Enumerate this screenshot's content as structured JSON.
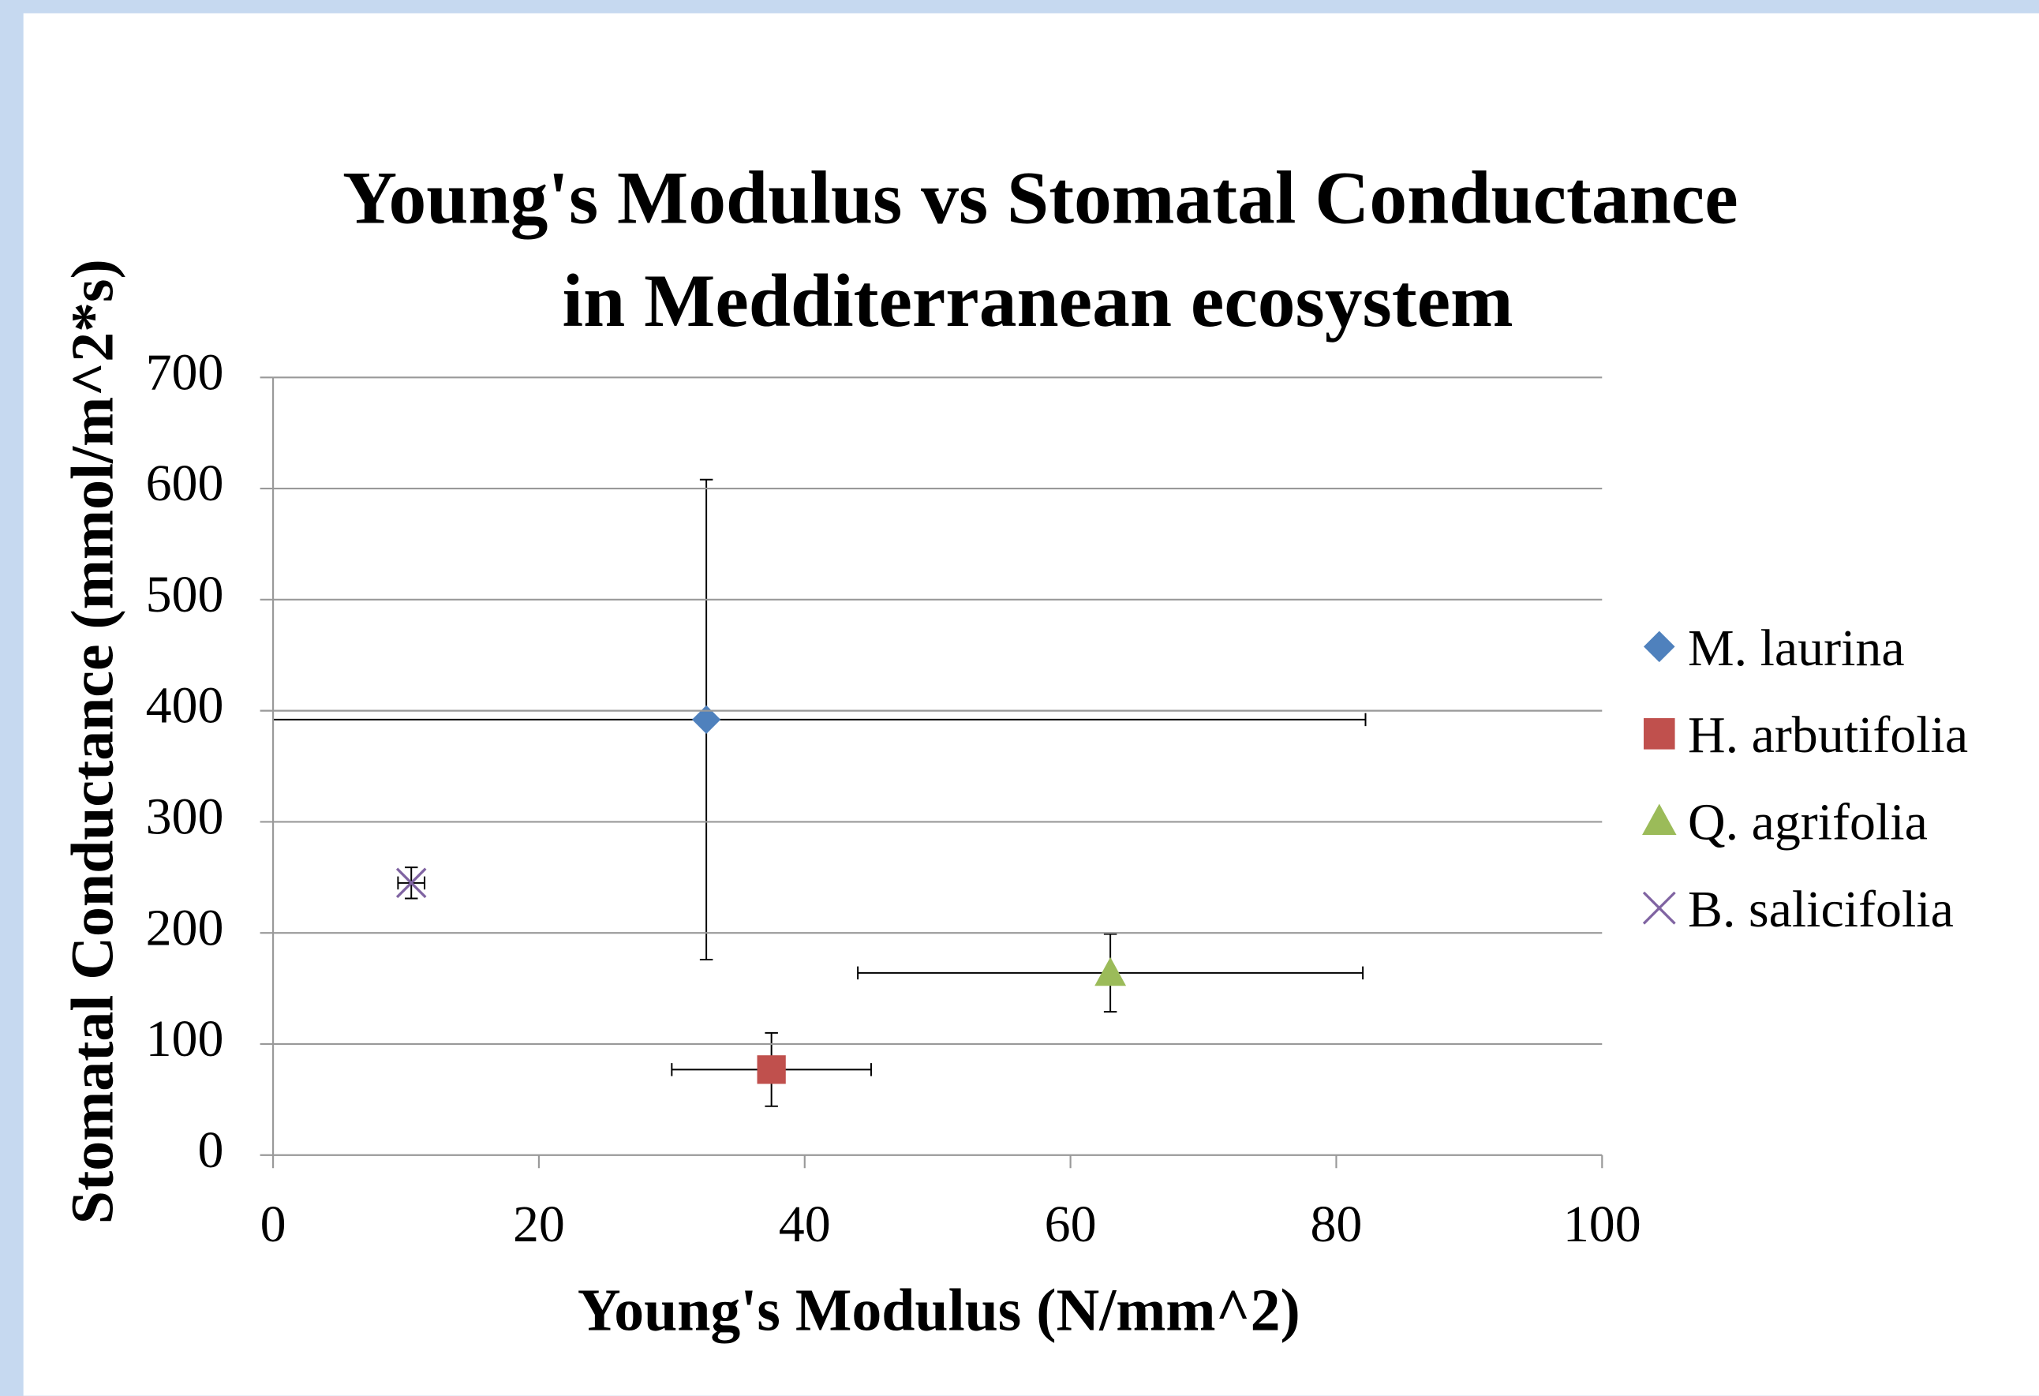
{
  "chart_data": {
    "type": "scatter",
    "title": [
      "Young's Modulus vs Stomatal Conductance",
      "in Medditerranean ecosystem"
    ],
    "xlabel": "Young's Modulus (N/mm^2)",
    "ylabel": "Stomatal Conductance (mmol/m^2*s)",
    "xlim": [
      0,
      100
    ],
    "xticks": [
      0,
      20,
      40,
      60,
      80,
      100
    ],
    "ylim": [
      0,
      700
    ],
    "yticks": [
      0,
      100,
      200,
      300,
      400,
      500,
      600,
      700
    ],
    "grid": true,
    "legend": "right",
    "series": [
      {
        "name": "M. laurina",
        "color": "#4f81bd",
        "marker": "diamond",
        "x": [
          32.6
        ],
        "values": [
          392
        ],
        "xerr": [
          49.6
        ],
        "yerr": [
          216
        ]
      },
      {
        "name": "H. arbutifolia",
        "color": "#c0504d",
        "marker": "square",
        "x": [
          37.5
        ],
        "values": [
          77
        ],
        "xerr": [
          7.5
        ],
        "yerr": [
          33
        ]
      },
      {
        "name": "Q. agrifolia",
        "color": "#9bbb59",
        "marker": "triangle",
        "x": [
          63
        ],
        "values": [
          164
        ],
        "xerr": [
          19
        ],
        "yerr": [
          35
        ]
      },
      {
        "name": "B. salicifolia",
        "color": "#8064a2",
        "marker": "x",
        "x": [
          10.4
        ],
        "values": [
          245
        ],
        "xerr": [
          1
        ],
        "yerr": [
          14
        ]
      }
    ]
  }
}
